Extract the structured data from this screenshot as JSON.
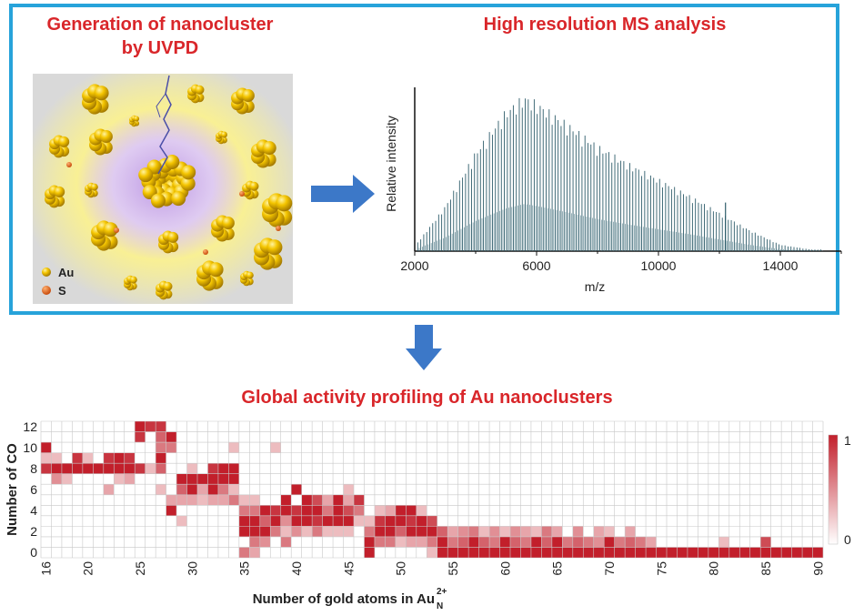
{
  "colors": {
    "frame": "#27a3da",
    "title": "#d9262a",
    "arrow": "#3c78c8",
    "spectrum": "#2f5d6b",
    "heat_low": "#ffffff",
    "heat_high": "#c21f2b"
  },
  "panel1": {
    "title_line1": "Generation of nanocluster",
    "title_line2": "by UVPD",
    "legend": [
      {
        "label": "Au",
        "color": "#f2c400"
      },
      {
        "label": "S",
        "color": "#e0601c"
      }
    ]
  },
  "panel2": {
    "title": "High resolution MS analysis"
  },
  "panel3": {
    "title": "Global activity profiling of Au nanoclusters"
  },
  "chart_data": [
    {
      "type": "line",
      "title": "High resolution MS analysis",
      "xlabel": "m/z",
      "ylabel": "Relative intensity",
      "xlim": [
        2000,
        16000
      ],
      "xticks": [
        2000,
        6000,
        10000,
        14000
      ],
      "tick_labels": [
        "2000",
        "6000",
        "10000",
        "14000"
      ],
      "series": [
        {
          "name": "envelope",
          "x": [
            2000,
            3000,
            4000,
            5000,
            5600,
            6000,
            7000,
            8000,
            9000,
            10000,
            11000,
            12000,
            13000,
            14000,
            15000
          ],
          "y": [
            0.03,
            0.28,
            0.62,
            0.88,
            0.97,
            0.93,
            0.8,
            0.66,
            0.55,
            0.45,
            0.35,
            0.24,
            0.13,
            0.04,
            0.01
          ]
        },
        {
          "name": "isolated peak",
          "x": [
            12200
          ],
          "y": [
            0.3
          ]
        }
      ]
    },
    {
      "type": "heatmap",
      "xlabel": "Number of gold atoms in Au",
      "xlabel_sub": "N",
      "xlabel_sup": "2+",
      "ylabel": "Number of CO",
      "x_range": [
        16,
        91
      ],
      "y_range": [
        0,
        12
      ],
      "xticks": [
        16,
        20,
        25,
        30,
        35,
        40,
        45,
        50,
        55,
        60,
        65,
        70,
        75,
        80,
        85,
        90
      ],
      "yticks": [
        0,
        2,
        4,
        6,
        8,
        10,
        12
      ],
      "colorbar": {
        "min_label": "0",
        "max_label": "1"
      },
      "rows": {
        "16": [
          [
            10,
            1
          ],
          [
            8,
            0.9
          ],
          [
            9,
            0.3
          ]
        ],
        "17": [
          [
            8,
            1
          ],
          [
            7,
            0.5
          ],
          [
            9,
            0.3
          ]
        ],
        "18": [
          [
            8,
            1
          ],
          [
            7,
            0.3
          ]
        ],
        "19": [
          [
            8,
            1
          ],
          [
            9,
            0.9
          ]
        ],
        "20": [
          [
            8,
            1
          ],
          [
            9,
            0.3
          ]
        ],
        "21": [
          [
            8,
            1
          ]
        ],
        "22": [
          [
            8,
            1
          ],
          [
            9,
            0.9
          ],
          [
            6,
            0.4
          ]
        ],
        "23": [
          [
            8,
            1
          ],
          [
            9,
            1
          ],
          [
            7,
            0.3
          ]
        ],
        "24": [
          [
            8,
            1
          ],
          [
            9,
            0.9
          ],
          [
            7,
            0.4
          ]
        ],
        "25": [
          [
            8,
            0.9
          ],
          [
            12,
            1
          ],
          [
            11,
            0.9
          ]
        ],
        "26": [
          [
            12,
            0.9
          ],
          [
            8,
            0.3
          ]
        ],
        "27": [
          [
            12,
            0.9
          ],
          [
            11,
            0.7
          ],
          [
            9,
            1
          ],
          [
            10,
            0.6
          ],
          [
            8,
            0.7
          ],
          [
            6,
            0.3
          ]
        ],
        "28": [
          [
            4,
            1
          ],
          [
            5,
            0.4
          ],
          [
            11,
            1
          ],
          [
            10,
            0.6
          ]
        ],
        "29": [
          [
            5,
            0.4
          ],
          [
            6,
            0.7
          ],
          [
            7,
            1
          ],
          [
            3,
            0.3
          ]
        ],
        "30": [
          [
            6,
            1
          ],
          [
            7,
            1
          ],
          [
            5,
            0.4
          ],
          [
            8,
            0.3
          ]
        ],
        "31": [
          [
            6,
            0.4
          ],
          [
            7,
            1
          ],
          [
            5,
            0.3
          ]
        ],
        "32": [
          [
            6,
            1
          ],
          [
            7,
            1
          ],
          [
            8,
            0.9
          ],
          [
            5,
            0.4
          ]
        ],
        "33": [
          [
            8,
            1
          ],
          [
            7,
            1
          ],
          [
            6,
            0.6
          ],
          [
            5,
            0.4
          ]
        ],
        "34": [
          [
            8,
            1
          ],
          [
            7,
            1
          ],
          [
            5,
            0.6
          ],
          [
            10,
            0.3
          ],
          [
            6,
            0.3
          ]
        ],
        "35": [
          [
            2,
            1
          ],
          [
            3,
            1
          ],
          [
            4,
            0.6
          ],
          [
            0,
            0.6
          ],
          [
            5,
            0.3
          ]
        ],
        "36": [
          [
            2,
            1
          ],
          [
            3,
            1
          ],
          [
            1,
            0.6
          ],
          [
            4,
            0.6
          ],
          [
            5,
            0.3
          ],
          [
            0,
            0.4
          ]
        ],
        "37": [
          [
            2,
            1
          ],
          [
            3,
            0.7
          ],
          [
            4,
            1
          ],
          [
            1,
            0.5
          ]
        ],
        "38": [
          [
            3,
            1
          ],
          [
            4,
            0.9
          ],
          [
            2,
            0.6
          ],
          [
            10,
            0.3
          ]
        ],
        "39": [
          [
            4,
            1
          ],
          [
            5,
            1
          ],
          [
            3,
            0.5
          ],
          [
            1,
            0.6
          ],
          [
            2,
            0.3
          ]
        ],
        "40": [
          [
            3,
            1
          ],
          [
            4,
            0.9
          ],
          [
            6,
            1
          ],
          [
            2,
            0.5
          ]
        ],
        "41": [
          [
            3,
            1
          ],
          [
            4,
            1
          ],
          [
            5,
            1
          ],
          [
            2,
            0.3
          ]
        ],
        "42": [
          [
            3,
            0.9
          ],
          [
            4,
            1
          ],
          [
            5,
            0.8
          ],
          [
            2,
            0.6
          ]
        ],
        "43": [
          [
            3,
            1
          ],
          [
            4,
            0.6
          ],
          [
            5,
            0.4
          ],
          [
            2,
            0.3
          ]
        ],
        "44": [
          [
            3,
            1
          ],
          [
            4,
            1
          ],
          [
            5,
            1
          ],
          [
            2,
            0.3
          ]
        ],
        "45": [
          [
            3,
            1
          ],
          [
            4,
            0.8
          ],
          [
            5,
            0.4
          ],
          [
            6,
            0.3
          ],
          [
            2,
            0.3
          ]
        ],
        "46": [
          [
            4,
            0.6
          ],
          [
            5,
            0.9
          ],
          [
            3,
            0.3
          ]
        ],
        "47": [
          [
            0,
            1
          ],
          [
            1,
            1
          ],
          [
            2,
            0.6
          ],
          [
            3,
            0.3
          ]
        ],
        "48": [
          [
            2,
            1
          ],
          [
            3,
            0.9
          ],
          [
            1,
            0.6
          ],
          [
            4,
            0.3
          ]
        ],
        "49": [
          [
            2,
            1
          ],
          [
            3,
            1
          ],
          [
            1,
            0.6
          ],
          [
            4,
            0.4
          ]
        ],
        "50": [
          [
            2,
            0.7
          ],
          [
            3,
            1
          ],
          [
            4,
            1
          ],
          [
            1,
            0.3
          ]
        ],
        "51": [
          [
            2,
            1
          ],
          [
            3,
            0.9
          ],
          [
            4,
            1
          ],
          [
            1,
            0.4
          ]
        ],
        "52": [
          [
            2,
            1
          ],
          [
            3,
            1
          ],
          [
            1,
            0.4
          ],
          [
            4,
            0.3
          ]
        ],
        "53": [
          [
            2,
            1
          ],
          [
            3,
            0.8
          ],
          [
            1,
            0.6
          ],
          [
            0,
            0.3
          ]
        ],
        "54": [
          [
            0,
            1
          ],
          [
            1,
            1
          ],
          [
            2,
            0.7
          ]
        ],
        "55": [
          [
            0,
            1
          ],
          [
            1,
            0.6
          ],
          [
            2,
            0.4
          ]
        ],
        "56": [
          [
            0,
            1
          ],
          [
            1,
            0.7
          ],
          [
            2,
            0.5
          ]
        ],
        "57": [
          [
            0,
            1
          ],
          [
            1,
            1
          ],
          [
            2,
            0.6
          ]
        ],
        "58": [
          [
            0,
            1
          ],
          [
            1,
            0.7
          ],
          [
            2,
            0.3
          ]
        ],
        "59": [
          [
            0,
            1
          ],
          [
            1,
            0.6
          ],
          [
            2,
            0.5
          ]
        ],
        "60": [
          [
            0,
            1
          ],
          [
            1,
            1
          ],
          [
            2,
            0.3
          ]
        ],
        "61": [
          [
            0,
            1
          ],
          [
            1,
            0.7
          ],
          [
            2,
            0.5
          ]
        ],
        "62": [
          [
            0,
            1
          ],
          [
            1,
            0.6
          ],
          [
            2,
            0.4
          ]
        ],
        "63": [
          [
            0,
            1
          ],
          [
            1,
            1
          ],
          [
            2,
            0.3
          ]
        ],
        "64": [
          [
            0,
            1
          ],
          [
            1,
            0.7
          ],
          [
            2,
            0.6
          ]
        ],
        "65": [
          [
            0,
            1
          ],
          [
            1,
            1
          ],
          [
            2,
            0.4
          ]
        ],
        "66": [
          [
            0,
            1
          ],
          [
            1,
            0.6
          ]
        ],
        "67": [
          [
            0,
            1
          ],
          [
            1,
            0.7
          ],
          [
            2,
            0.5
          ]
        ],
        "68": [
          [
            0,
            1
          ],
          [
            1,
            0.6
          ]
        ],
        "69": [
          [
            0,
            1
          ],
          [
            1,
            0.5
          ],
          [
            2,
            0.4
          ]
        ],
        "70": [
          [
            0,
            1
          ],
          [
            1,
            1
          ],
          [
            2,
            0.3
          ]
        ],
        "71": [
          [
            0,
            1
          ],
          [
            1,
            0.6
          ]
        ],
        "72": [
          [
            0,
            1
          ],
          [
            1,
            0.7
          ],
          [
            2,
            0.4
          ]
        ],
        "73": [
          [
            0,
            1
          ],
          [
            1,
            0.6
          ]
        ],
        "74": [
          [
            0,
            1
          ],
          [
            1,
            0.4
          ]
        ],
        "75": [
          [
            0,
            1
          ]
        ],
        "76": [
          [
            0,
            1
          ]
        ],
        "77": [
          [
            0,
            1
          ]
        ],
        "78": [
          [
            0,
            1
          ]
        ],
        "79": [
          [
            0,
            1
          ]
        ],
        "80": [
          [
            0,
            1
          ]
        ],
        "81": [
          [
            0,
            1
          ],
          [
            1,
            0.3
          ]
        ],
        "82": [
          [
            0,
            1
          ]
        ],
        "83": [
          [
            0,
            1
          ]
        ],
        "84": [
          [
            0,
            1
          ]
        ],
        "85": [
          [
            0,
            1
          ],
          [
            1,
            0.8
          ]
        ],
        "86": [
          [
            0,
            1
          ]
        ],
        "87": [
          [
            0,
            1
          ]
        ],
        "88": [
          [
            0,
            1
          ]
        ],
        "89": [
          [
            0,
            1
          ]
        ],
        "90": [
          [
            0,
            1
          ]
        ]
      }
    }
  ]
}
